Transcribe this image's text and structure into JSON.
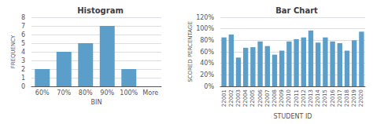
{
  "chart_data": [
    {
      "type": "bar",
      "title": "Histogram",
      "xlabel": "BIN",
      "ylabel": "FREQUENCY",
      "categories": [
        "60%",
        "70%",
        "80%",
        "90%",
        "100%",
        "More"
      ],
      "values": [
        2,
        4,
        5,
        7,
        2,
        0
      ],
      "color": "#5b9ec9",
      "ylim": [
        0,
        8
      ],
      "yticks": [
        0,
        1,
        2,
        3,
        4,
        5,
        6,
        7,
        8
      ],
      "grid": true
    },
    {
      "type": "bar",
      "title": "Bar Chart",
      "xlabel": "STUDENT ID",
      "ylabel": "SCORED PERCENTAGE",
      "categories": [
        "22001",
        "22002",
        "22003",
        "22004",
        "22005",
        "22006",
        "22007",
        "22008",
        "22009",
        "22010",
        "22011",
        "22012",
        "22013",
        "22014",
        "22015",
        "22016",
        "22017",
        "22018",
        "22019",
        "22020"
      ],
      "values": [
        85,
        90,
        50,
        67,
        68,
        78,
        70,
        55,
        62,
        78,
        82,
        85,
        97,
        76,
        85,
        78,
        75,
        62,
        80,
        95
      ],
      "color": "#5b9ec9",
      "ylim": [
        0,
        120
      ],
      "yticks": [
        {
          "value": 0,
          "label": "0%"
        },
        {
          "value": 20,
          "label": "20%"
        },
        {
          "value": 40,
          "label": "40%"
        },
        {
          "value": 60,
          "label": "60%"
        },
        {
          "value": 80,
          "label": "80%"
        },
        {
          "value": 100,
          "label": "100%"
        },
        {
          "value": 120,
          "label": "120%"
        }
      ],
      "grid": true
    }
  ]
}
